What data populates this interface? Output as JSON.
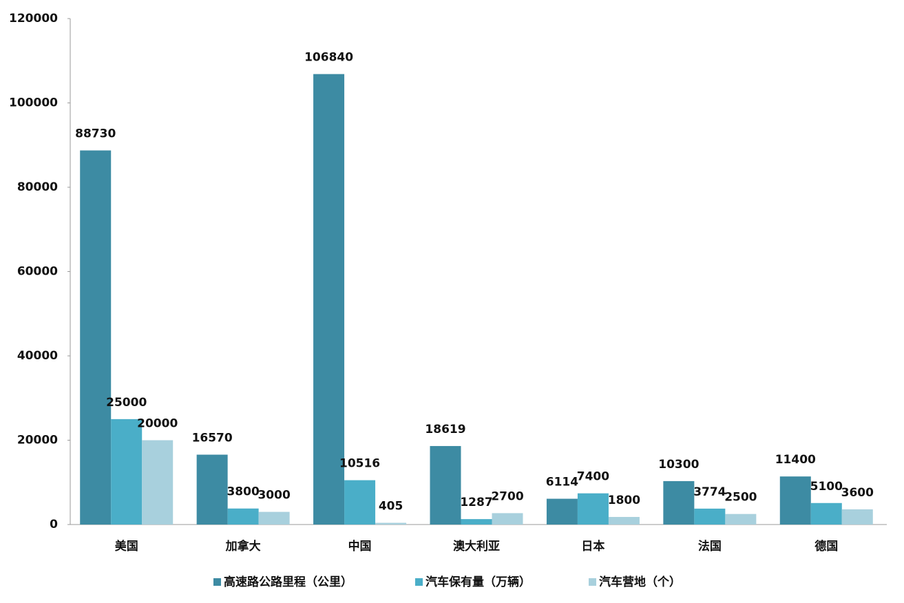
{
  "chart_data": {
    "type": "bar",
    "categories": [
      "美国",
      "加拿大",
      "中国",
      "澳大利亚",
      "日本",
      "法国",
      "德国"
    ],
    "series": [
      {
        "name": "高速路公路里程（公里）",
        "color": "#3d8ba3",
        "values": [
          88730,
          16570,
          106840,
          18619,
          6114,
          10300,
          11400
        ]
      },
      {
        "name": "汽车保有量（万辆）",
        "color": "#4aaec8",
        "values": [
          25000,
          3800,
          10516,
          1287,
          7400,
          3774,
          5100
        ]
      },
      {
        "name": "汽车营地（个）",
        "color": "#a8d0dd",
        "values": [
          20000,
          3000,
          405,
          2700,
          1800,
          2500,
          3600
        ]
      }
    ],
    "ylim": [
      0,
      120000
    ],
    "yticks": [
      0,
      20000,
      40000,
      60000,
      80000,
      100000,
      120000
    ],
    "grid": false,
    "legend": "bottom"
  }
}
